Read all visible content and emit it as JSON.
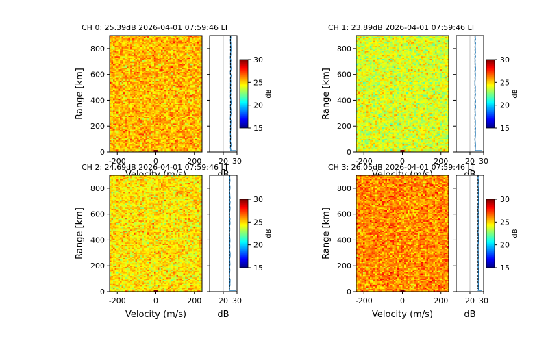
{
  "figure": {
    "title": ""
  },
  "colormap": {
    "name": "jet",
    "stops": [
      "#00007f",
      "#0000ff",
      "#007fff",
      "#00ffff",
      "#7fff7f",
      "#ffff00",
      "#ff7f00",
      "#ff0000",
      "#7f0000"
    ]
  },
  "chart_data": [
    {
      "type": "heatmap",
      "channel": 0,
      "title": "CH 0: 25.39dB 2026-04-01 07:59:46 LT",
      "mean_db": 25.39,
      "xlabel": "Velocity (m/s)",
      "ylabel": "Range [km]",
      "xlim": [
        -240,
        240
      ],
      "ylim": [
        0,
        900
      ],
      "xticks": [
        -200,
        0,
        200
      ],
      "yticks": [
        0,
        200,
        400,
        600,
        800
      ],
      "clim": [
        15,
        30
      ],
      "cbar_ticks": [
        15,
        20,
        25,
        30
      ],
      "cbar_label": "dB",
      "profile": {
        "xlabel": "dB",
        "xlim": [
          10,
          30
        ],
        "xticks": [
          20,
          30
        ],
        "value_db": 25.4,
        "surface_db": 29,
        "surface_range_km": 10
      },
      "dc_hotspot": {
        "velocity": 0,
        "range_km": 5,
        "db": 30
      }
    },
    {
      "type": "heatmap",
      "channel": 1,
      "title": "CH 1: 23.89dB 2026-04-01 07:59:46 LT",
      "mean_db": 23.89,
      "xlabel": "Velocity (m/s)",
      "ylabel": "Range [km]",
      "xlim": [
        -240,
        240
      ],
      "ylim": [
        0,
        900
      ],
      "xticks": [
        -200,
        0,
        200
      ],
      "yticks": [
        0,
        200,
        400,
        600,
        800
      ],
      "clim": [
        15,
        30
      ],
      "cbar_ticks": [
        15,
        20,
        25,
        30
      ],
      "cbar_label": "dB",
      "profile": {
        "xlabel": "dB",
        "xlim": [
          10,
          30
        ],
        "xticks": [
          20,
          30
        ],
        "value_db": 23.9,
        "surface_db": 29,
        "surface_range_km": 10
      },
      "dc_hotspot": {
        "velocity": 0,
        "range_km": 5,
        "db": 30
      }
    },
    {
      "type": "heatmap",
      "channel": 2,
      "title": "CH 2: 24.69dB 2026-04-01 07:59:46 LT",
      "mean_db": 24.69,
      "xlabel": "Velocity (m/s)",
      "ylabel": "Range [km]",
      "xlim": [
        -240,
        240
      ],
      "ylim": [
        0,
        900
      ],
      "xticks": [
        -200,
        0,
        200
      ],
      "yticks": [
        0,
        200,
        400,
        600,
        800
      ],
      "clim": [
        15,
        30
      ],
      "cbar_ticks": [
        15,
        20,
        25,
        30
      ],
      "cbar_label": "dB",
      "profile": {
        "xlabel": "dB",
        "xlim": [
          10,
          30
        ],
        "xticks": [
          20,
          30
        ],
        "value_db": 24.7,
        "surface_db": 29,
        "surface_range_km": 10
      },
      "dc_hotspot": {
        "velocity": 0,
        "range_km": 5,
        "db": 30
      }
    },
    {
      "type": "heatmap",
      "channel": 3,
      "title": "CH 3: 26.05dB 2026-04-01 07:59:46 LT",
      "mean_db": 26.05,
      "xlabel": "Velocity (m/s)",
      "ylabel": "Range [km]",
      "xlim": [
        -240,
        240
      ],
      "ylim": [
        0,
        900
      ],
      "xticks": [
        -200,
        0,
        200
      ],
      "yticks": [
        0,
        200,
        400,
        600,
        800
      ],
      "clim": [
        15,
        30
      ],
      "cbar_ticks": [
        15,
        20,
        25,
        30
      ],
      "cbar_label": "dB",
      "profile": {
        "xlabel": "dB",
        "xlim": [
          10,
          30
        ],
        "xticks": [
          20,
          30
        ],
        "value_db": 26.1,
        "surface_db": 29,
        "surface_range_km": 10
      },
      "dc_hotspot": {
        "velocity": 0,
        "range_km": 5,
        "db": 30
      }
    }
  ]
}
